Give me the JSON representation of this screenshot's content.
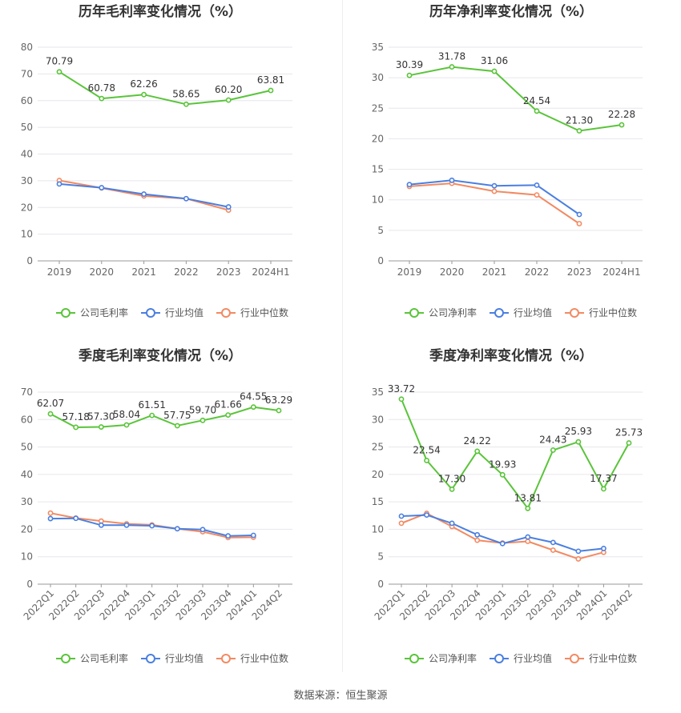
{
  "footer": {
    "source": "数据来源：恒生聚源"
  },
  "colors": {
    "company": "#5ac43a",
    "avg": "#4a7fe0",
    "median": "#f28a62",
    "grid": "#e6e6ee",
    "axis": "#888888"
  },
  "chart_data": [
    {
      "type": "line",
      "title": "历年毛利率变化情况（%）",
      "categories": [
        "2019",
        "2020",
        "2021",
        "2022",
        "2023",
        "2024H1"
      ],
      "ylim": [
        0,
        80
      ],
      "yticks": [
        0,
        10,
        20,
        30,
        40,
        50,
        60,
        70,
        80
      ],
      "rotate_x": false,
      "grid": true,
      "legend_position": "bottom",
      "series": [
        {
          "name": "公司毛利率",
          "color_key": "company",
          "labels": true,
          "values": [
            70.79,
            60.78,
            62.26,
            58.65,
            60.2,
            63.81
          ]
        },
        {
          "name": "行业均值",
          "color_key": "avg",
          "labels": false,
          "values": [
            28.8,
            27.4,
            25.0,
            23.3,
            20.2,
            null
          ]
        },
        {
          "name": "行业中位数",
          "color_key": "median",
          "labels": false,
          "values": [
            30.1,
            27.3,
            24.3,
            23.3,
            19.0,
            null
          ]
        }
      ]
    },
    {
      "type": "line",
      "title": "历年净利率变化情况（%）",
      "categories": [
        "2019",
        "2020",
        "2021",
        "2022",
        "2023",
        "2024H1"
      ],
      "ylim": [
        0,
        35
      ],
      "yticks": [
        0,
        5,
        10,
        15,
        20,
        25,
        30,
        35
      ],
      "rotate_x": false,
      "grid": true,
      "legend_position": "bottom",
      "series": [
        {
          "name": "公司净利率",
          "color_key": "company",
          "labels": true,
          "values": [
            30.39,
            31.78,
            31.06,
            24.54,
            21.3,
            22.28
          ]
        },
        {
          "name": "行业均值",
          "color_key": "avg",
          "labels": false,
          "values": [
            12.5,
            13.2,
            12.3,
            12.4,
            7.6,
            null
          ]
        },
        {
          "name": "行业中位数",
          "color_key": "median",
          "labels": false,
          "values": [
            12.2,
            12.7,
            11.4,
            10.8,
            6.1,
            null
          ]
        }
      ]
    },
    {
      "type": "line",
      "title": "季度毛利率变化情况（%）",
      "categories": [
        "2022Q1",
        "2022Q2",
        "2022Q3",
        "2022Q4",
        "2023Q1",
        "2023Q2",
        "2023Q3",
        "2023Q4",
        "2024Q1",
        "2024Q2"
      ],
      "ylim": [
        0,
        70
      ],
      "yticks": [
        0,
        10,
        20,
        30,
        40,
        50,
        60,
        70
      ],
      "rotate_x": true,
      "grid": true,
      "legend_position": "bottom",
      "series": [
        {
          "name": "公司毛利率",
          "color_key": "company",
          "labels": true,
          "values": [
            62.07,
            57.18,
            57.3,
            58.04,
            61.51,
            57.75,
            59.7,
            61.66,
            64.55,
            63.29
          ]
        },
        {
          "name": "行业均值",
          "color_key": "avg",
          "labels": false,
          "values": [
            23.9,
            24.0,
            21.5,
            21.5,
            21.3,
            20.2,
            19.9,
            17.6,
            17.8,
            null
          ]
        },
        {
          "name": "行业中位数",
          "color_key": "median",
          "labels": false,
          "values": [
            25.9,
            24.1,
            23.0,
            22.0,
            21.6,
            20.2,
            19.1,
            17.0,
            17.1,
            null
          ]
        }
      ]
    },
    {
      "type": "line",
      "title": "季度净利率变化情况（%）",
      "categories": [
        "2022Q1",
        "2022Q2",
        "2022Q3",
        "2022Q4",
        "2023Q1",
        "2023Q2",
        "2023Q3",
        "2023Q4",
        "2024Q1",
        "2024Q2"
      ],
      "ylim": [
        0,
        35
      ],
      "yticks": [
        0,
        5,
        10,
        15,
        20,
        25,
        30,
        35
      ],
      "rotate_x": true,
      "grid": true,
      "legend_position": "bottom",
      "series": [
        {
          "name": "公司净利率",
          "color_key": "company",
          "labels": true,
          "values": [
            33.72,
            22.54,
            17.3,
            24.22,
            19.93,
            13.81,
            24.43,
            25.93,
            17.37,
            25.73
          ]
        },
        {
          "name": "行业均值",
          "color_key": "avg",
          "labels": false,
          "values": [
            12.4,
            12.6,
            11.1,
            9.0,
            7.4,
            8.6,
            7.6,
            6.0,
            6.5,
            null
          ]
        },
        {
          "name": "行业中位数",
          "color_key": "median",
          "labels": false,
          "values": [
            11.1,
            12.9,
            10.5,
            8.0,
            7.5,
            7.8,
            6.2,
            4.6,
            5.8,
            null
          ]
        }
      ]
    }
  ]
}
